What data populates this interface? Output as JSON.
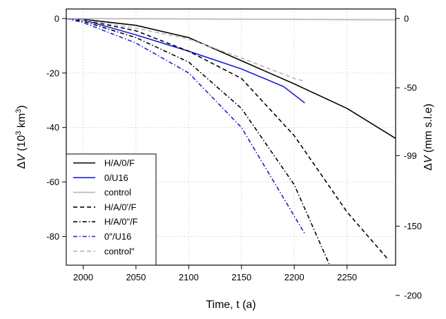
{
  "chart_data": {
    "type": "line",
    "xlabel": "Time, t (a)",
    "ylabel": {
      "prefix": "Δ",
      "var": "V",
      "open": " (10",
      "sup": "3",
      "unit": " km",
      "sup2": "3",
      "close": ")"
    },
    "ylabel_right": {
      "prefix": "Δ",
      "var": "V",
      "rest": " (mm s.l.e)"
    },
    "xlim": [
      1984,
      2296
    ],
    "ylim": [
      -90.5,
      3.5
    ],
    "x_ticks": [
      2000,
      2050,
      2100,
      2150,
      2200,
      2250
    ],
    "y_ticks": [
      0,
      -20,
      -40,
      -60,
      -80
    ],
    "right_ticks": [
      {
        "y": 0,
        "label": "0"
      },
      {
        "y": -25.4,
        "label": "-50"
      },
      {
        "y": -50.3,
        "label": "-99"
      },
      {
        "y": -76.2,
        "label": "-150"
      },
      {
        "y": -101.6,
        "label": "-200"
      }
    ],
    "grid": true,
    "legend_position": "bottom-left",
    "series": [
      {
        "name": "H/A/0/F",
        "color": "#000000",
        "dash": "solid",
        "x": [
          1984,
          2000,
          2050,
          2100,
          2150,
          2200,
          2250,
          2296
        ],
        "y": [
          0,
          -0.3,
          -2.5,
          -7,
          -15.5,
          -24,
          -33,
          -44
        ]
      },
      {
        "name": "0/U16",
        "color": "#1a1adb",
        "dash": "solid",
        "x": [
          1984,
          2000,
          2050,
          2100,
          2150,
          2190,
          2210
        ],
        "y": [
          0,
          -0.5,
          -6,
          -12,
          -18.5,
          -25,
          -31
        ]
      },
      {
        "name": "control",
        "color": "#b5b5b5",
        "dash": "solid",
        "x": [
          1984,
          2296
        ],
        "y": [
          0,
          -0.5
        ]
      },
      {
        "name": "H/A/0'/F",
        "color": "#000000",
        "dash": "dash",
        "x": [
          1984,
          2000,
          2050,
          2100,
          2150,
          2200,
          2250,
          2288
        ],
        "y": [
          0,
          -0.5,
          -4.5,
          -12,
          -22,
          -43,
          -71,
          -88
        ]
      },
      {
        "name": "H/A/0\"/F",
        "color": "#000000",
        "dash": "dashdot",
        "x": [
          1984,
          2000,
          2050,
          2100,
          2150,
          2200,
          2233
        ],
        "y": [
          0,
          -1,
          -7,
          -16,
          -33,
          -61,
          -90
        ]
      },
      {
        "name": "0\"/U16",
        "color": "#1a1adb",
        "dash": "dashdot",
        "x": [
          1984,
          2000,
          2050,
          2100,
          2150,
          2190,
          2210
        ],
        "y": [
          0,
          -1.5,
          -9,
          -20,
          -40,
          -66,
          -79
        ]
      },
      {
        "name": "control\"",
        "color": "#b5b5b5",
        "dash": "dash",
        "x": [
          1984,
          2000,
          2050,
          2100,
          2150,
          2200,
          2210
        ],
        "y": [
          0,
          -0.5,
          -3.5,
          -7.5,
          -14.5,
          -22,
          -23
        ]
      }
    ]
  }
}
